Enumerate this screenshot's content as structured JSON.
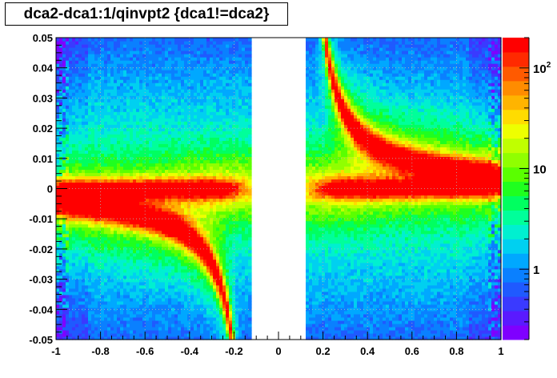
{
  "chart_data": {
    "type": "heatmap",
    "title": "dca2-dca1:1/qinvpt2 {dca1!=dca2}",
    "xlabel": "",
    "ylabel": "",
    "xlim": [
      -1,
      1
    ],
    "ylim": [
      -0.05,
      0.05
    ],
    "log_z": true,
    "grid": true,
    "gap_region": [
      -0.12,
      0.12
    ],
    "x_ticks": [
      "-1",
      "-0.8",
      "-0.6",
      "-0.4",
      "-0.2",
      "0",
      "0.2",
      "0.4",
      "0.6",
      "0.8",
      "1"
    ],
    "x_tick_values": [
      -1,
      -0.8,
      -0.6,
      -0.4,
      -0.2,
      0,
      0.2,
      0.4,
      0.6,
      0.8,
      1
    ],
    "y_ticks": [
      "-0.05",
      "-0.04",
      "-0.03",
      "-0.02",
      "-0.01",
      "0",
      "0.01",
      "0.02",
      "0.03",
      "0.04",
      "0.05"
    ],
    "y_tick_values": [
      -0.05,
      -0.04,
      -0.03,
      -0.02,
      -0.01,
      0,
      0.01,
      0.02,
      0.03,
      0.04,
      0.05
    ],
    "z_ticks": [
      "1",
      "10",
      "10^2"
    ],
    "z_tick_values": [
      1,
      10,
      100
    ],
    "z_range": [
      0.2,
      200
    ],
    "palette": [
      "#7f00ff",
      "#5a1aff",
      "#3a3aff",
      "#1f5aff",
      "#0a80ff",
      "#00a8ff",
      "#00d0f0",
      "#00f0d0",
      "#00ff9a",
      "#00ff60",
      "#1fff1f",
      "#5aff00",
      "#90ff00",
      "#c0ff00",
      "#eeff00",
      "#ffdc00",
      "#ffb400",
      "#ff8c00",
      "#ff5a00",
      "#ff2a00",
      "#ff0000"
    ]
  }
}
